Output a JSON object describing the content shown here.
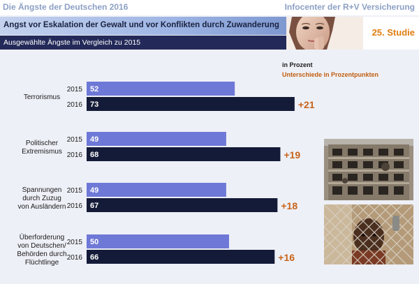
{
  "header": {
    "title": "Die Ängste der Deutschen 2016",
    "publisher": "Infocenter der R+V Versicherung"
  },
  "headline": "Angst vor Eskalation der Gewalt und vor Konflikten durch Zuwanderung",
  "subheadline": "Ausgewählte Ängste im Vergleich zu 2015",
  "edition_badge": "25. Studie",
  "legend": {
    "unit": "in Prozent",
    "difference": "Unterschiede in Prozentpunkten"
  },
  "colors": {
    "bar_2015": "#6e78d6",
    "bar_2016": "#141b38",
    "difference": "#c8641a",
    "headline_band": "#9eb5e4",
    "subheadline_band": "#232a59",
    "badge": "#e07d10"
  },
  "chart_data": {
    "type": "bar",
    "orientation": "horizontal",
    "title": "Angst vor Eskalation der Gewalt und vor Konflikten durch Zuwanderung",
    "subtitle": "Ausgewählte Ängste im Vergleich zu 2015",
    "unit": "in Prozent",
    "categories": [
      "Terrorismus",
      "Politischer Extremismus",
      "Spannungen durch Zuzug von Ausländern",
      "Überforderung von Deutschen/ Behörden durch Flüchtlinge"
    ],
    "category_lines": [
      [
        "Terrorismus"
      ],
      [
        "Politischer",
        "Extremismus"
      ],
      [
        "Spannungen",
        "durch Zuzug",
        "von Ausländern"
      ],
      [
        "Überforderung",
        "von Deutschen/",
        "Behörden durch",
        "Flüchtlinge"
      ]
    ],
    "series": [
      {
        "name": "2015",
        "values": [
          52,
          49,
          49,
          50
        ]
      },
      {
        "name": "2016",
        "values": [
          73,
          68,
          67,
          66
        ]
      }
    ],
    "differences": [
      "+21",
      "+19",
      "+18",
      "+16"
    ],
    "xlim": [
      0,
      100
    ],
    "grid": false
  }
}
